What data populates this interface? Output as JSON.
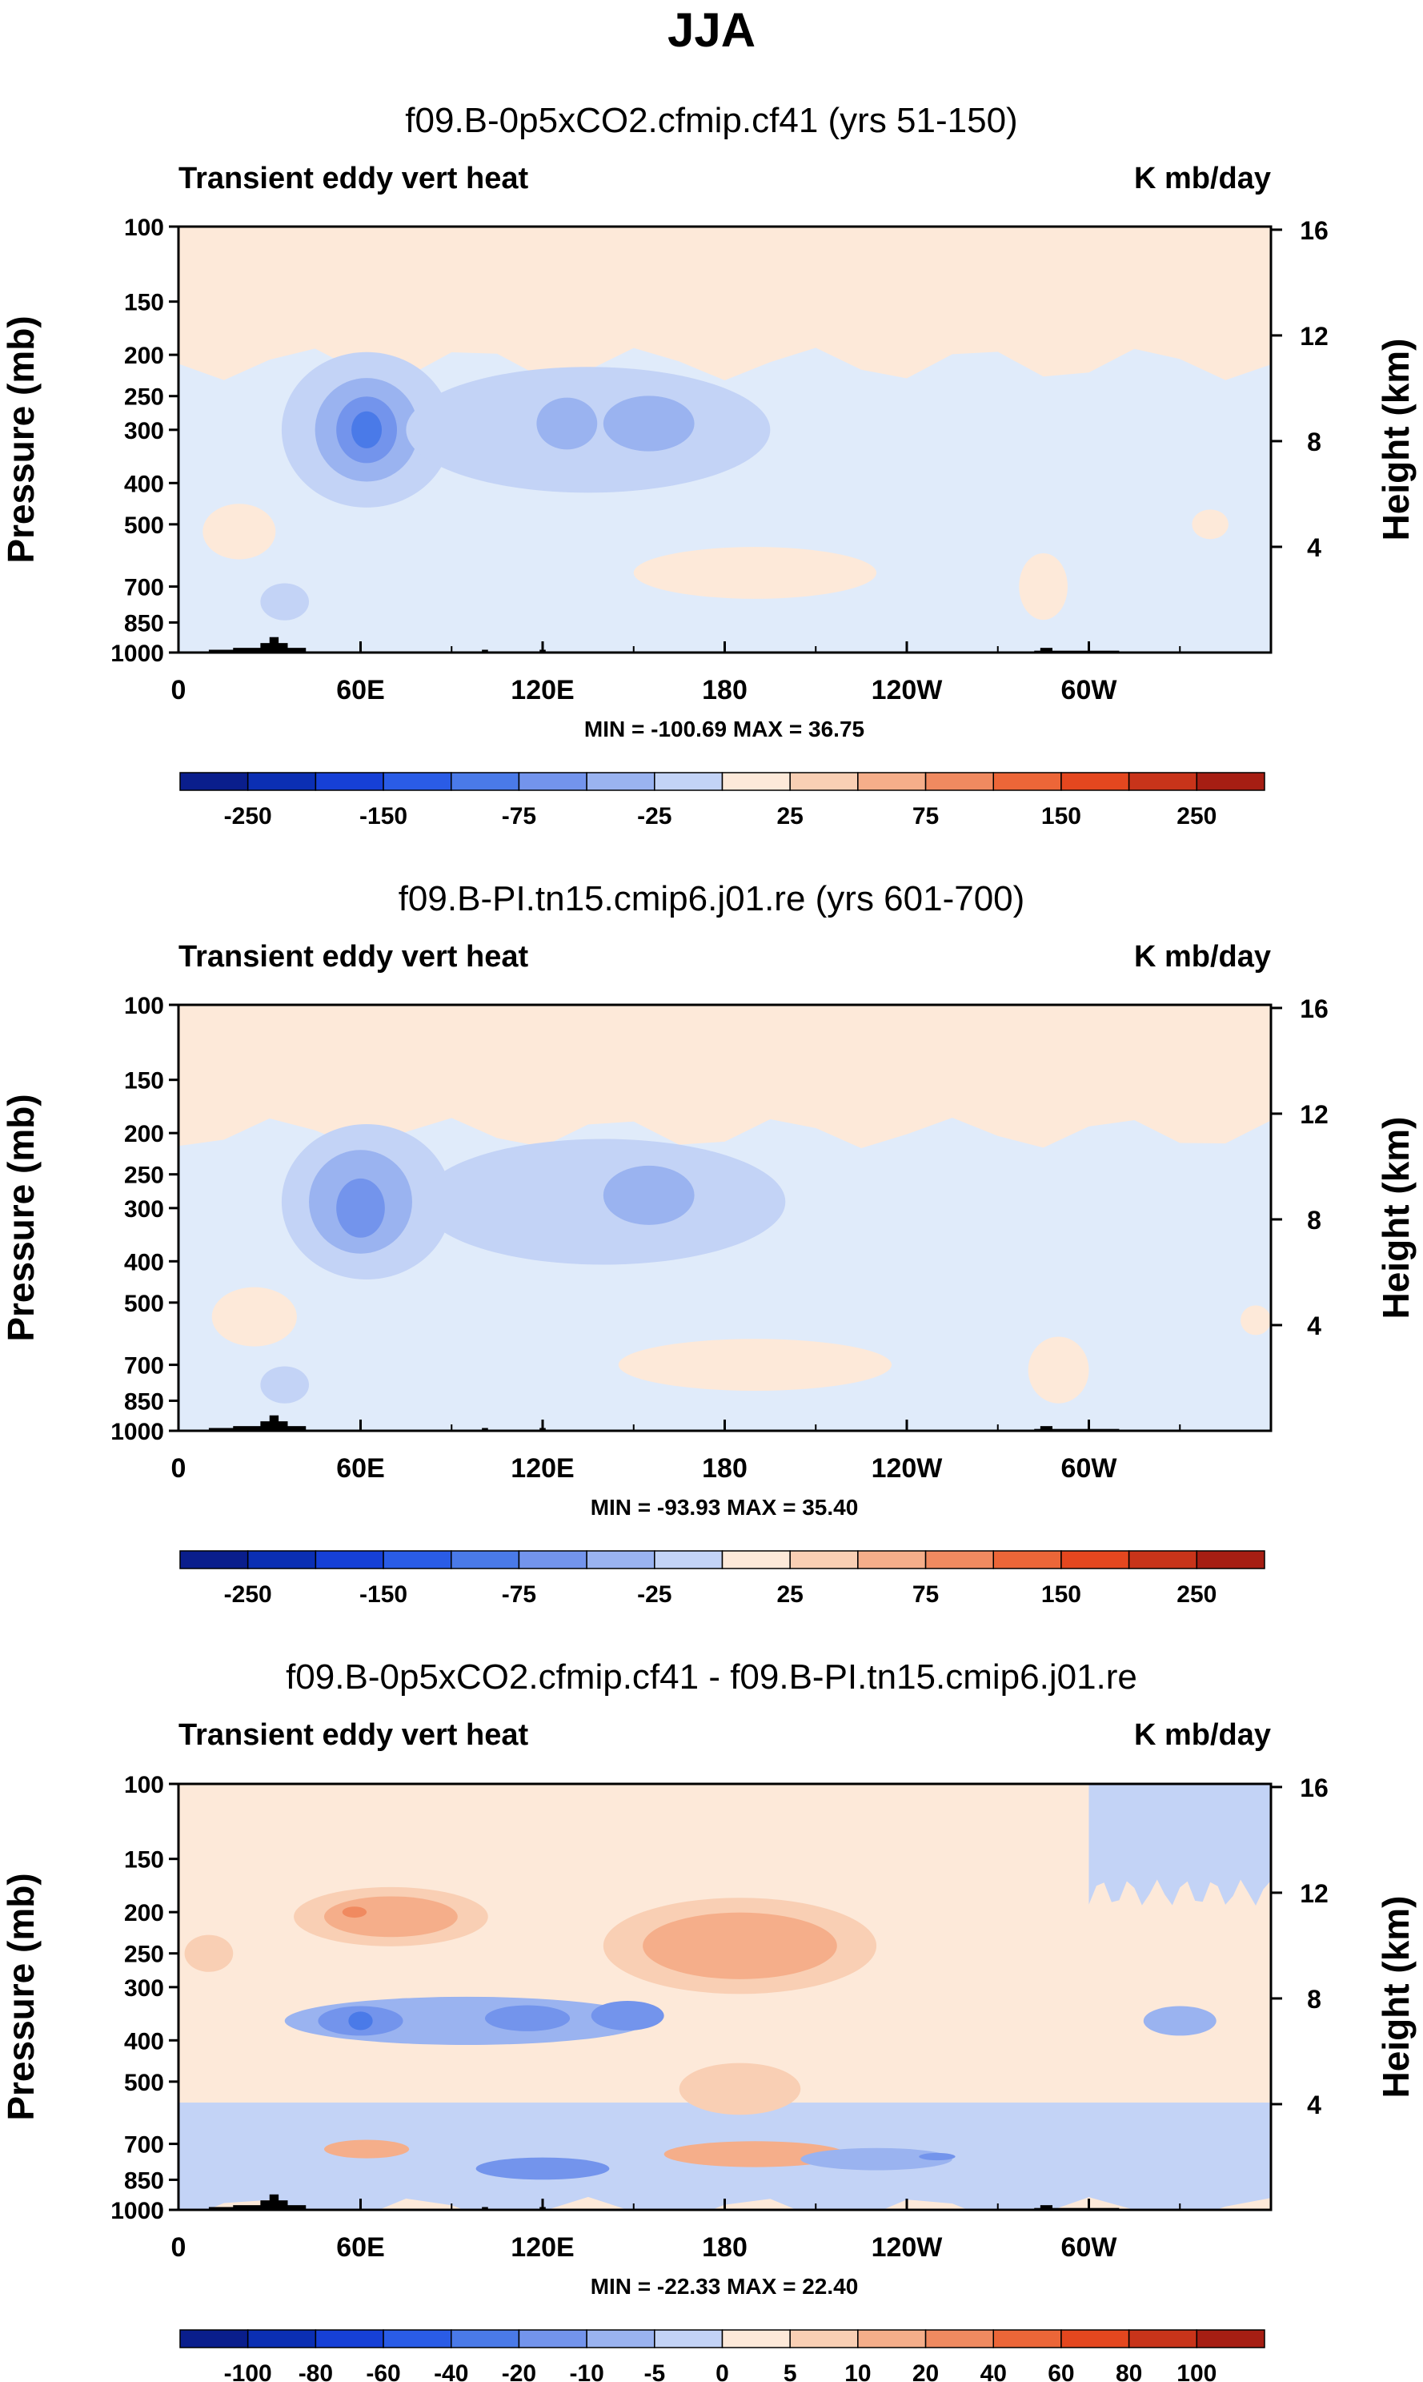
{
  "figure": {
    "title": "JJA",
    "colors": {
      "neg_palette": [
        "#0a1e8c",
        "#0b2fb3",
        "#1640d6",
        "#2a5ce6",
        "#4a7ae8",
        "#7394ec",
        "#9ab3f0",
        "#c3d3f6",
        "#e0ebfa"
      ],
      "pos_palette": [
        "#fde9d9",
        "#f9cfb4",
        "#f5ae8a",
        "#f08a60",
        "#ec6638",
        "#e4471f",
        "#c8341a",
        "#a61e13",
        "#7a0d0d"
      ],
      "topography": "#000000"
    }
  },
  "chart_data": [
    {
      "type": "heatmap",
      "title": "f09.B-0p5xCO2.cfmip.cf41 (yrs 51-150)",
      "left_label": "Transient eddy vert heat",
      "right_label": "K mb/day",
      "ylabel": "Pressure (mb)",
      "y2label": "Height (km)",
      "x_ticks": [
        "0",
        "60E",
        "120E",
        "180",
        "120W",
        "60W"
      ],
      "x_tick_values": [
        0,
        60,
        120,
        180,
        240,
        300
      ],
      "xlim": [
        0,
        360
      ],
      "y_ticks": [
        "100",
        "150",
        "200",
        "250",
        "300",
        "400",
        "500",
        "700",
        "850",
        "1000"
      ],
      "y_tick_values": [
        100,
        150,
        200,
        250,
        300,
        400,
        500,
        700,
        850,
        1000
      ],
      "ylim": [
        100,
        1000
      ],
      "y2_ticks": [
        "4",
        "8",
        "12",
        "16"
      ],
      "y2_tick_values": [
        4,
        8,
        12,
        16
      ],
      "stats": "MIN = -100.69  MAX =  36.75",
      "background_level": 0,
      "colorbar_labels": [
        "-250",
        "-150",
        "-75",
        "-25",
        "25",
        "75",
        "150",
        "250"
      ],
      "features": [
        {
          "lon": 0,
          "p": 100,
          "lon2": 360,
          "p2": 210,
          "level": 1,
          "shape": "band"
        },
        {
          "lon": 62,
          "p": 300,
          "rx": 28,
          "ry": 0.42,
          "level": -1
        },
        {
          "lon": 62,
          "p": 300,
          "rx": 17,
          "ry": 0.28,
          "level": -2
        },
        {
          "lon": 62,
          "p": 300,
          "rx": 10,
          "ry": 0.18,
          "level": -3
        },
        {
          "lon": 62,
          "p": 300,
          "rx": 5,
          "ry": 0.1,
          "level": -4
        },
        {
          "lon": 135,
          "p": 300,
          "rx": 60,
          "ry": 0.34,
          "level": -1
        },
        {
          "lon": 128,
          "p": 290,
          "rx": 10,
          "ry": 0.14,
          "level": -2
        },
        {
          "lon": 155,
          "p": 290,
          "rx": 15,
          "ry": 0.15,
          "level": -2
        },
        {
          "lon": 190,
          "p": 650,
          "rx": 40,
          "ry": 0.14,
          "level": 1
        },
        {
          "lon": 35,
          "p": 760,
          "rx": 8,
          "ry": 0.1,
          "level": -1
        },
        {
          "lon": 20,
          "p": 520,
          "rx": 12,
          "ry": 0.15,
          "level": 1
        },
        {
          "lon": 285,
          "p": 700,
          "rx": 8,
          "ry": 0.18,
          "level": 1
        },
        {
          "lon": 340,
          "p": 500,
          "rx": 6,
          "ry": 0.08,
          "level": 1
        }
      ]
    },
    {
      "type": "heatmap",
      "title": "f09.B-PI.tn15.cmip6.j01.re (yrs 601-700)",
      "left_label": "Transient eddy vert heat",
      "right_label": "K mb/day",
      "ylabel": "Pressure (mb)",
      "y2label": "Height (km)",
      "x_ticks": [
        "0",
        "60E",
        "120E",
        "180",
        "120W",
        "60W"
      ],
      "x_tick_values": [
        0,
        60,
        120,
        180,
        240,
        300
      ],
      "xlim": [
        0,
        360
      ],
      "y_ticks": [
        "100",
        "150",
        "200",
        "250",
        "300",
        "400",
        "500",
        "700",
        "850",
        "1000"
      ],
      "y_tick_values": [
        100,
        150,
        200,
        250,
        300,
        400,
        500,
        700,
        850,
        1000
      ],
      "ylim": [
        100,
        1000
      ],
      "y2_ticks": [
        "4",
        "8",
        "12",
        "16"
      ],
      "y2_tick_values": [
        4,
        8,
        12,
        16
      ],
      "stats": "MIN = -93.93  MAX =  35.40",
      "background_level": 0,
      "colorbar_labels": [
        "-250",
        "-150",
        "-75",
        "-25",
        "25",
        "75",
        "150",
        "250"
      ],
      "features": [
        {
          "lon": 0,
          "p": 100,
          "lon2": 360,
          "p2": 200,
          "level": 1,
          "shape": "band"
        },
        {
          "lon": 62,
          "p": 290,
          "rx": 28,
          "ry": 0.42,
          "level": -1
        },
        {
          "lon": 60,
          "p": 290,
          "rx": 17,
          "ry": 0.28,
          "level": -2
        },
        {
          "lon": 60,
          "p": 300,
          "rx": 8,
          "ry": 0.16,
          "level": -3
        },
        {
          "lon": 140,
          "p": 290,
          "rx": 60,
          "ry": 0.34,
          "level": -1
        },
        {
          "lon": 155,
          "p": 280,
          "rx": 15,
          "ry": 0.16,
          "level": -2
        },
        {
          "lon": 190,
          "p": 700,
          "rx": 45,
          "ry": 0.14,
          "level": 1
        },
        {
          "lon": 25,
          "p": 540,
          "rx": 14,
          "ry": 0.16,
          "level": 1
        },
        {
          "lon": 35,
          "p": 780,
          "rx": 8,
          "ry": 0.1,
          "level": -1
        },
        {
          "lon": 290,
          "p": 720,
          "rx": 10,
          "ry": 0.18,
          "level": 1
        },
        {
          "lon": 355,
          "p": 550,
          "rx": 5,
          "ry": 0.08,
          "level": 1
        }
      ]
    },
    {
      "type": "heatmap",
      "title": "f09.B-0p5xCO2.cfmip.cf41 - f09.B-PI.tn15.cmip6.j01.re",
      "left_label": "Transient eddy vert heat",
      "right_label": "K mb/day",
      "ylabel": "Pressure (mb)",
      "y2label": "Height (km)",
      "x_ticks": [
        "0",
        "60E",
        "120E",
        "180",
        "120W",
        "60W"
      ],
      "x_tick_values": [
        0,
        60,
        120,
        180,
        240,
        300
      ],
      "xlim": [
        0,
        360
      ],
      "y_ticks": [
        "100",
        "150",
        "200",
        "250",
        "300",
        "400",
        "500",
        "700",
        "850",
        "1000"
      ],
      "y_tick_values": [
        100,
        150,
        200,
        250,
        300,
        400,
        500,
        700,
        850,
        1000
      ],
      "ylim": [
        100,
        1000
      ],
      "y2_ticks": [
        "4",
        "8",
        "12",
        "16"
      ],
      "y2_tick_values": [
        4,
        8,
        12,
        16
      ],
      "stats": "MIN = -22.33  MAX = 22.40",
      "background_level": 1,
      "colorbar_labels": [
        "-100",
        "-80",
        "-60",
        "-40",
        "-20",
        "-10",
        "-5",
        "0",
        "5",
        "10",
        "20",
        "40",
        "60",
        "80",
        "100"
      ],
      "features": [
        {
          "lon": 0,
          "p": 560,
          "lon2": 360,
          "p2": 1000,
          "level": -1,
          "shape": "band"
        },
        {
          "lon": 300,
          "p": 100,
          "lon2": 360,
          "p2": 180,
          "level": -1,
          "shape": "band"
        },
        {
          "lon": 70,
          "p": 205,
          "rx": 32,
          "ry": 0.16,
          "level": 2
        },
        {
          "lon": 70,
          "p": 205,
          "rx": 22,
          "ry": 0.11,
          "level": 3
        },
        {
          "lon": 58,
          "p": 200,
          "rx": 4,
          "ry": 0.03,
          "level": 4
        },
        {
          "lon": 185,
          "p": 240,
          "rx": 45,
          "ry": 0.26,
          "level": 2
        },
        {
          "lon": 185,
          "p": 240,
          "rx": 32,
          "ry": 0.18,
          "level": 3
        },
        {
          "lon": 95,
          "p": 360,
          "rx": 60,
          "ry": 0.13,
          "level": -2
        },
        {
          "lon": 60,
          "p": 360,
          "rx": 14,
          "ry": 0.08,
          "level": -3
        },
        {
          "lon": 60,
          "p": 360,
          "rx": 4,
          "ry": 0.05,
          "level": -4
        },
        {
          "lon": 115,
          "p": 355,
          "rx": 14,
          "ry": 0.07,
          "level": -3
        },
        {
          "lon": 148,
          "p": 350,
          "rx": 12,
          "ry": 0.08,
          "level": -3
        },
        {
          "lon": 185,
          "p": 520,
          "rx": 20,
          "ry": 0.14,
          "level": 2
        },
        {
          "lon": 190,
          "p": 740,
          "rx": 30,
          "ry": 0.07,
          "level": 3
        },
        {
          "lon": 62,
          "p": 720,
          "rx": 14,
          "ry": 0.05,
          "level": 3
        },
        {
          "lon": 120,
          "p": 800,
          "rx": 22,
          "ry": 0.06,
          "level": -3
        },
        {
          "lon": 230,
          "p": 760,
          "rx": 25,
          "ry": 0.06,
          "level": -2
        },
        {
          "lon": 250,
          "p": 750,
          "rx": 6,
          "ry": 0.02,
          "level": -3
        },
        {
          "lon": 330,
          "p": 360,
          "rx": 12,
          "ry": 0.08,
          "level": -2
        },
        {
          "lon": 10,
          "p": 250,
          "rx": 8,
          "ry": 0.1,
          "level": 2
        }
      ]
    }
  ]
}
